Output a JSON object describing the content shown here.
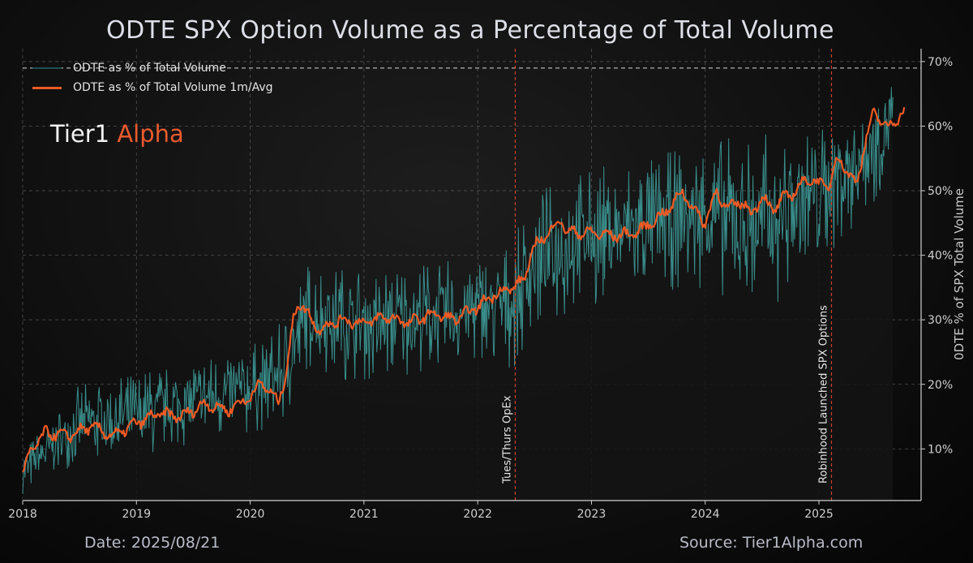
{
  "title": "ODTE SPX Option Volume as a Percentage of Total Volume",
  "brand": {
    "primary": "Tier1",
    "accent": "Alpha"
  },
  "footer": {
    "date": "Date: 2025/08/21",
    "source": "Source: Tier1Alpha.com"
  },
  "colors": {
    "raw_series": "#3fa3a0",
    "avg_series": "#ee5a24",
    "event_line": "#c8402a",
    "grid": "#6a6a6a",
    "axis_text": "#cfcfcf",
    "fill": "#141414"
  },
  "chart_data": {
    "type": "line",
    "title": "ODTE SPX Option Volume as a Percentage of Total Volume",
    "xlabel": "",
    "ylabel": "0DTE % of SPX Total Volume",
    "x_range": [
      2018.0,
      2025.9
    ],
    "ylim": [
      2,
      72
    ],
    "x_ticks": [
      {
        "value": 2018,
        "label": "2018"
      },
      {
        "value": 2019,
        "label": "2019"
      },
      {
        "value": 2020,
        "label": "2020"
      },
      {
        "value": 2021,
        "label": "2021"
      },
      {
        "value": 2022,
        "label": "2022"
      },
      {
        "value": 2023,
        "label": "2023"
      },
      {
        "value": 2024,
        "label": "2024"
      },
      {
        "value": 2025,
        "label": "2025"
      }
    ],
    "y_ticks": [
      {
        "value": 10,
        "label": "10%"
      },
      {
        "value": 20,
        "label": "20%"
      },
      {
        "value": 30,
        "label": "30%"
      },
      {
        "value": 40,
        "label": "40%"
      },
      {
        "value": 50,
        "label": "50%"
      },
      {
        "value": 60,
        "label": "60%"
      },
      {
        "value": 70,
        "label": "70%"
      }
    ],
    "grid": true,
    "legend": {
      "position": "top-left",
      "entries": [
        "ODTE as % of Total Volume",
        "ODTE as % of Total Volume 1m/Avg"
      ]
    },
    "reference_line": {
      "value": 69,
      "style": "dashed"
    },
    "events": [
      {
        "x": 2022.33,
        "label": "Tues/Thurs OpEx"
      },
      {
        "x": 2025.11,
        "label": "Robinhood Launched SPX Options"
      }
    ],
    "series": [
      {
        "name": "ODTE as % of Total Volume",
        "style": "noisy-daily",
        "approx_low": [
          [
            2018.0,
            3
          ],
          [
            2018.5,
            8
          ],
          [
            2019.0,
            8
          ],
          [
            2019.5,
            11
          ],
          [
            2020.0,
            12
          ],
          [
            2020.3,
            14
          ],
          [
            2020.5,
            22
          ],
          [
            2021.0,
            20
          ],
          [
            2021.5,
            22
          ],
          [
            2022.0,
            23
          ],
          [
            2022.3,
            22
          ],
          [
            2022.5,
            28
          ],
          [
            2023.0,
            32
          ],
          [
            2023.5,
            34
          ],
          [
            2024.0,
            35
          ],
          [
            2024.5,
            30
          ],
          [
            2025.0,
            38
          ],
          [
            2025.5,
            48
          ],
          [
            2025.65,
            56
          ]
        ],
        "approx_high": [
          [
            2018.0,
            10
          ],
          [
            2018.5,
            20
          ],
          [
            2019.0,
            22
          ],
          [
            2019.5,
            24
          ],
          [
            2020.0,
            26
          ],
          [
            2020.3,
            30
          ],
          [
            2020.5,
            39
          ],
          [
            2021.0,
            38
          ],
          [
            2021.5,
            39
          ],
          [
            2022.0,
            40
          ],
          [
            2022.3,
            42
          ],
          [
            2022.5,
            50
          ],
          [
            2023.0,
            54
          ],
          [
            2023.5,
            55
          ],
          [
            2024.0,
            58
          ],
          [
            2024.5,
            59
          ],
          [
            2025.0,
            61
          ],
          [
            2025.5,
            67
          ],
          [
            2025.65,
            69
          ]
        ]
      },
      {
        "name": "ODTE as % of Total Volume 1m/Avg",
        "points": [
          [
            2018.0,
            6
          ],
          [
            2018.08,
            10
          ],
          [
            2018.2,
            12.5
          ],
          [
            2018.4,
            12
          ],
          [
            2018.6,
            13.5
          ],
          [
            2018.8,
            12
          ],
          [
            2019.0,
            14
          ],
          [
            2019.2,
            15.5
          ],
          [
            2019.4,
            15
          ],
          [
            2019.6,
            17
          ],
          [
            2019.8,
            16
          ],
          [
            2020.0,
            18
          ],
          [
            2020.1,
            20.5
          ],
          [
            2020.2,
            18
          ],
          [
            2020.25,
            17.5
          ],
          [
            2020.32,
            22
          ],
          [
            2020.38,
            30
          ],
          [
            2020.42,
            33
          ],
          [
            2020.5,
            31
          ],
          [
            2020.6,
            28.5
          ],
          [
            2020.8,
            30
          ],
          [
            2021.0,
            29.5
          ],
          [
            2021.2,
            30.5
          ],
          [
            2021.4,
            29.5
          ],
          [
            2021.6,
            31
          ],
          [
            2021.8,
            30
          ],
          [
            2022.0,
            32
          ],
          [
            2022.15,
            34
          ],
          [
            2022.3,
            35
          ],
          [
            2022.4,
            36
          ],
          [
            2022.5,
            41.5
          ],
          [
            2022.6,
            43
          ],
          [
            2022.72,
            45.5
          ],
          [
            2022.8,
            43.5
          ],
          [
            2023.0,
            43.5
          ],
          [
            2023.2,
            43
          ],
          [
            2023.4,
            43.5
          ],
          [
            2023.6,
            46
          ],
          [
            2023.7,
            47.5
          ],
          [
            2023.8,
            50
          ],
          [
            2023.9,
            47
          ],
          [
            2024.0,
            45
          ],
          [
            2024.1,
            50
          ],
          [
            2024.2,
            47
          ],
          [
            2024.3,
            48.5
          ],
          [
            2024.4,
            46.5
          ],
          [
            2024.5,
            49
          ],
          [
            2024.6,
            47
          ],
          [
            2024.7,
            49
          ],
          [
            2024.8,
            50
          ],
          [
            2024.9,
            52
          ],
          [
            2025.0,
            51
          ],
          [
            2025.1,
            51
          ],
          [
            2025.15,
            55
          ],
          [
            2025.22,
            54
          ],
          [
            2025.28,
            52
          ],
          [
            2025.33,
            51
          ],
          [
            2025.4,
            57
          ],
          [
            2025.48,
            62
          ],
          [
            2025.55,
            61
          ],
          [
            2025.6,
            59.5
          ],
          [
            2025.65,
            60.5
          ],
          [
            2025.7,
            61.5
          ],
          [
            2025.75,
            62.5
          ]
        ]
      }
    ]
  }
}
